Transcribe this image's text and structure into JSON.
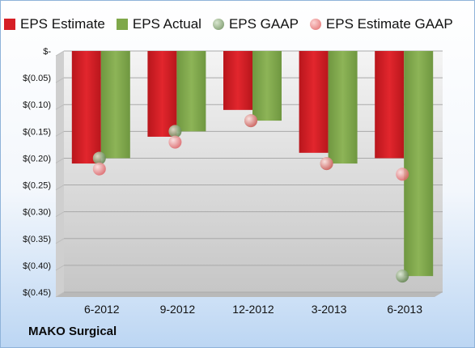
{
  "company": "MAKO Surgical",
  "colors": {
    "estimate": "#d61f26",
    "actual": "#7fa84a",
    "gaap": "#9bb58a",
    "estimate_gaap": "#f08a8a"
  },
  "chart_data": {
    "type": "bar",
    "categories": [
      "6-2012",
      "9-2012",
      "12-2012",
      "3-2013",
      "6-2013"
    ],
    "series": [
      {
        "name": "EPS Estimate",
        "type": "bar",
        "values": [
          -0.21,
          -0.16,
          -0.11,
          -0.19,
          -0.2
        ]
      },
      {
        "name": "EPS Actual",
        "type": "bar",
        "values": [
          -0.2,
          -0.15,
          -0.13,
          -0.21,
          -0.42
        ]
      },
      {
        "name": "EPS GAAP",
        "type": "scatter",
        "values": [
          -0.2,
          -0.15,
          -0.13,
          -0.21,
          -0.42
        ]
      },
      {
        "name": "EPS Estimate GAAP",
        "type": "scatter",
        "values": [
          -0.22,
          -0.17,
          -0.13,
          -0.21,
          -0.23
        ]
      }
    ],
    "yticks": [
      "$-",
      "$(0.05)",
      "$(0.10)",
      "$(0.15)",
      "$(0.20)",
      "$(0.25)",
      "$(0.30)",
      "$(0.35)",
      "$(0.40)",
      "$(0.45)"
    ],
    "ylim": [
      -0.45,
      0
    ],
    "legend": "top",
    "grid": true
  }
}
